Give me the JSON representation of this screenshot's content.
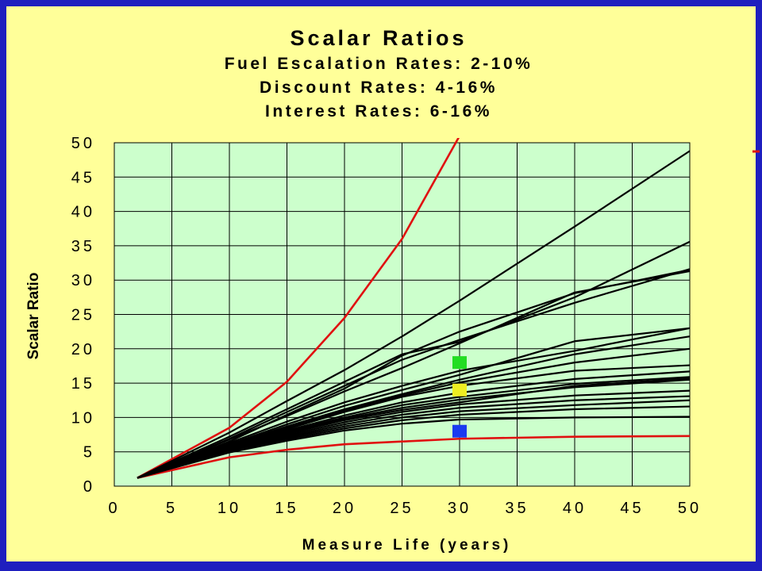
{
  "chart_data": {
    "type": "line",
    "title": "Scalar Ratios",
    "subtitles": [
      "Fuel Escalation Rates: 2-10%",
      "Discount Rates: 4-16%",
      "Interest Rates: 6-16%"
    ],
    "xlabel": "Measure Life (years)",
    "ylabel": "Scalar Ratio",
    "xlim": [
      0,
      50
    ],
    "ylim": [
      0,
      50
    ],
    "x_ticks": [
      0,
      5,
      10,
      15,
      20,
      25,
      30,
      35,
      40,
      45,
      50
    ],
    "y_ticks": [
      0,
      5,
      10,
      15,
      20,
      25,
      30,
      35,
      40,
      45,
      50
    ],
    "grid": true,
    "legend": "none",
    "colors": {
      "plot_background": "#ccffcc",
      "slide_background": "#ffff99",
      "frame": "#1f1fbf",
      "boundary_line": "#e01010",
      "family_line": "#000000"
    },
    "x": [
      2,
      10,
      15,
      20,
      25,
      30,
      40,
      50
    ],
    "series": [
      {
        "color": "#e01010",
        "values": [
          1.2,
          8.5,
          15.2,
          24.5,
          36,
          51,
          null,
          null
        ]
      },
      {
        "color": "#e01010",
        "values": [
          1.2,
          4.2,
          5.3,
          6.1,
          6.5,
          6.9,
          7.2,
          7.3
        ]
      },
      {
        "color": "#000000",
        "values": [
          1.2,
          7.8,
          12.4,
          16.9,
          21.8,
          27,
          37.8,
          48.8
        ]
      },
      {
        "color": "#000000",
        "values": [
          1.2,
          7.2,
          11.2,
          15.2,
          19.2,
          21,
          27.5,
          35.6
        ]
      },
      {
        "color": "#000000",
        "values": [
          1.2,
          6.9,
          10.8,
          14.6,
          18.4,
          21.3,
          26.7,
          31.6
        ]
      },
      {
        "color": "#000000",
        "values": [
          1.2,
          6.8,
          10.2,
          13.8,
          17.2,
          20.8,
          28.2,
          31.3
        ]
      },
      {
        "color": "#000000",
        "values": [
          1.2,
          6.5,
          10.4,
          14.2,
          19,
          22.5,
          28.1,
          31.5
        ]
      },
      {
        "color": "#000000",
        "values": [
          1.2,
          6.3,
          9.4,
          12.2,
          14.6,
          16.8,
          19.7,
          23
        ]
      },
      {
        "color": "#000000",
        "values": [
          1.2,
          6.1,
          9.0,
          11.7,
          14,
          16.2,
          21.1,
          23
        ]
      },
      {
        "color": "#000000",
        "values": [
          1.2,
          6.0,
          8.7,
          11.2,
          13.4,
          15.5,
          19.2,
          21.8
        ]
      },
      {
        "color": "#000000",
        "values": [
          1.2,
          5.9,
          8.5,
          11.0,
          13.2,
          15.1,
          18.0,
          20
        ]
      },
      {
        "color": "#000000",
        "values": [
          1.2,
          5.8,
          8.3,
          10.8,
          13,
          14.6,
          16.8,
          17.6
        ]
      },
      {
        "color": "#000000",
        "values": [
          1.2,
          5.7,
          8.1,
          10.3,
          12.2,
          13.6,
          15.6,
          16.7
        ]
      },
      {
        "color": "#000000",
        "values": [
          1.2,
          5.6,
          8.0,
          10.0,
          11.8,
          13.0,
          14.9,
          15.9
        ]
      },
      {
        "color": "#000000",
        "values": [
          1.2,
          5.5,
          7.8,
          9.8,
          11.4,
          12.6,
          14.4,
          15.5
        ]
      },
      {
        "color": "#000000",
        "values": [
          1.2,
          5.4,
          7.6,
          9.6,
          11.1,
          12.2,
          14.6,
          15.7
        ]
      },
      {
        "color": "#000000",
        "values": [
          1.2,
          5.3,
          7.4,
          9.3,
          10.8,
          11.9,
          13.2,
          13.9
        ]
      },
      {
        "color": "#000000",
        "values": [
          1.2,
          5.2,
          7.2,
          9.0,
          10.4,
          11.4,
          12.5,
          13.1
        ]
      },
      {
        "color": "#000000",
        "values": [
          1.2,
          5.1,
          7.0,
          8.7,
          10,
          10.9,
          11.8,
          12.5
        ]
      },
      {
        "color": "#000000",
        "values": [
          1.2,
          5.0,
          6.8,
          8.4,
          9.6,
          10.4,
          11.2,
          11.6
        ]
      },
      {
        "color": "#000000",
        "values": [
          1.2,
          4.9,
          6.6,
          8.1,
          9.1,
          9.7,
          10.0,
          10.1
        ]
      }
    ],
    "markers": [
      {
        "x": 30,
        "y": 18,
        "color": "#22dd22"
      },
      {
        "x": 30,
        "y": 14,
        "color": "#eeee22"
      },
      {
        "x": 30,
        "y": 8,
        "color": "#1a3af0"
      }
    ]
  }
}
